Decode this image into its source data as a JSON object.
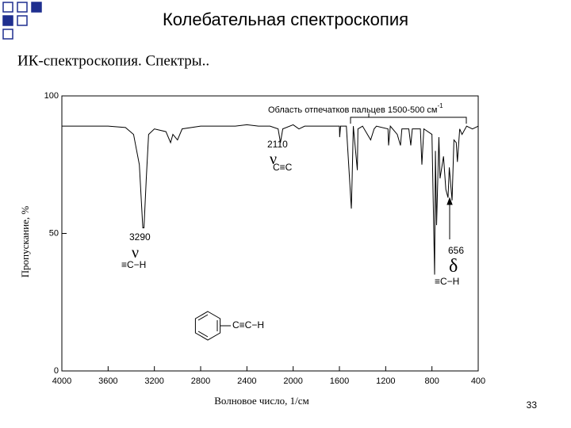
{
  "slide": {
    "title": "Колебательная спектроскопия",
    "subtitle": "ИК-спектроскопия. Спектры..",
    "page_number": "33"
  },
  "chart_data": {
    "type": "line",
    "x_label": "Волновое число, 1/см",
    "y_label": "Пропускание, %",
    "x": [
      4000,
      3800,
      3600,
      3450,
      3380,
      3330,
      3300,
      3290,
      3270,
      3250,
      3200,
      3100,
      3060,
      3040,
      3000,
      2960,
      2800,
      2500,
      2400,
      2300,
      2200,
      2130,
      2110,
      2090,
      2000,
      1950,
      1900,
      1800,
      1700,
      1600,
      1598,
      1590,
      1540,
      1497,
      1490,
      1480,
      1445,
      1440,
      1400,
      1330,
      1300,
      1280,
      1180,
      1175,
      1160,
      1100,
      1072,
      1060,
      1000,
      983,
      970,
      900,
      887,
      870,
      800,
      777,
      770,
      760,
      740,
      730,
      700,
      680,
      661,
      650,
      626,
      610,
      590,
      580,
      560,
      540,
      500,
      450,
      400
    ],
    "values": [
      89,
      89,
      89,
      88.5,
      86,
      75,
      52,
      52,
      70,
      86,
      88,
      87,
      83,
      86,
      84,
      88,
      89,
      89,
      89.5,
      89,
      89,
      88,
      83,
      88,
      89.5,
      88,
      89,
      89,
      89,
      89,
      85,
      89,
      89,
      59,
      70,
      89,
      73,
      88,
      89,
      84,
      88,
      89,
      88,
      82,
      89,
      86,
      82,
      88,
      88,
      82,
      88,
      88,
      75,
      88,
      86,
      35,
      80,
      53,
      85,
      70,
      78,
      66,
      63,
      74,
      62,
      84,
      83,
      76,
      88,
      86,
      89,
      88,
      89
    ],
    "color": "#000000",
    "xlim": [
      4000,
      400
    ],
    "ylim": [
      0,
      100
    ],
    "xticks": [
      4000,
      3600,
      3200,
      2800,
      2400,
      2000,
      1600,
      1200,
      800,
      400
    ],
    "yticks": [
      0,
      50,
      100
    ],
    "grid": false,
    "annotations": [
      {
        "text": "Область отпечатков пальцев 1500-500 см",
        "sup": "-1"
      },
      {
        "text": "3290"
      },
      {
        "text": "ν"
      },
      {
        "text": "≡C−H"
      },
      {
        "text": "2110"
      },
      {
        "text": "ν"
      },
      {
        "text": "C≡C"
      },
      {
        "text": "656"
      },
      {
        "text": "δ"
      },
      {
        "text": "≡C−H"
      },
      {
        "text": "C≡C−H"
      }
    ]
  }
}
